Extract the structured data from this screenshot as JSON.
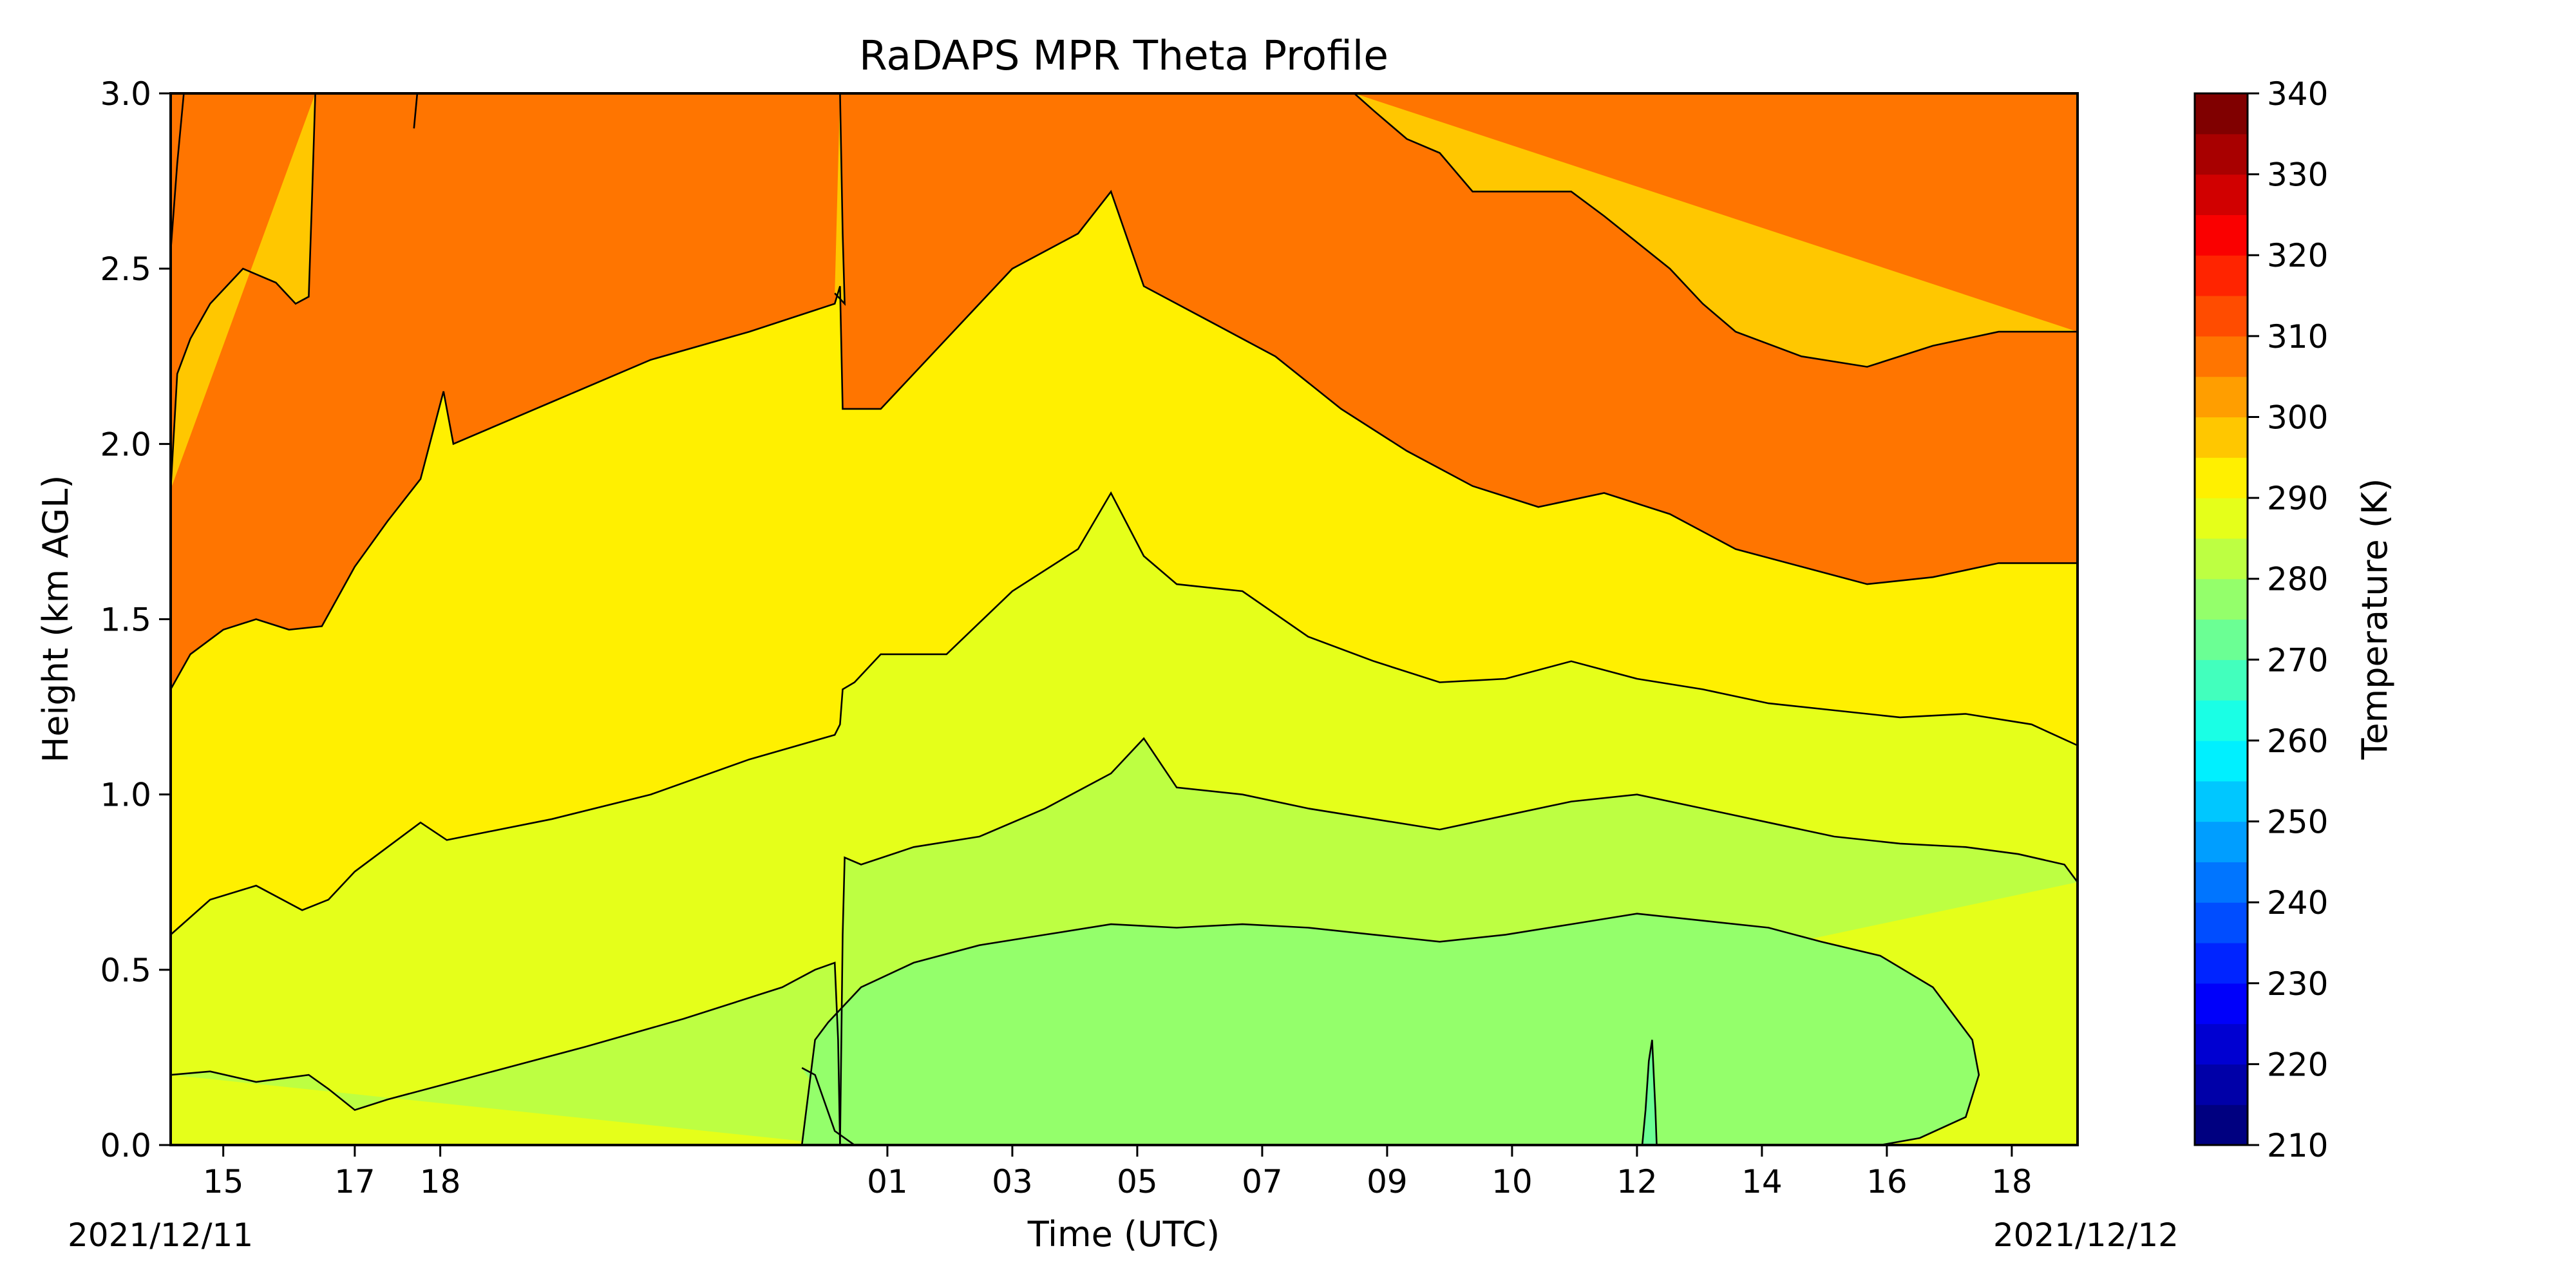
{
  "chart_data": {
    "type": "heatmap",
    "title": "RaDAPS MPR Theta Profile",
    "xlabel": "Time (UTC)",
    "ylabel": "Height (km AGL)",
    "xlim": [
      14.2,
      43.2
    ],
    "ylim": [
      0,
      3.0
    ],
    "x_ticks": [
      {
        "pos": 15,
        "label": "15"
      },
      {
        "pos": 17,
        "label": "17"
      },
      {
        "pos": 18.3,
        "label": "18"
      },
      {
        "pos": 25.1,
        "label": "01"
      },
      {
        "pos": 27,
        "label": "03"
      },
      {
        "pos": 28.9,
        "label": "05"
      },
      {
        "pos": 30.8,
        "label": "07"
      },
      {
        "pos": 32.7,
        "label": "09"
      },
      {
        "pos": 34.6,
        "label": "10"
      },
      {
        "pos": 36.5,
        "label": "12"
      },
      {
        "pos": 38.4,
        "label": "14"
      },
      {
        "pos": 40.3,
        "label": "16"
      },
      {
        "pos": 42.2,
        "label": "18"
      }
    ],
    "date_labels": {
      "left": "2021/12/11",
      "right": "2021/12/12"
    },
    "y_ticks": [
      {
        "pos": 0.0,
        "label": "0.0"
      },
      {
        "pos": 0.5,
        "label": "0.5"
      },
      {
        "pos": 1.0,
        "label": "1.0"
      },
      {
        "pos": 1.5,
        "label": "1.5"
      },
      {
        "pos": 2.0,
        "label": "2.0"
      },
      {
        "pos": 2.5,
        "label": "2.5"
      },
      {
        "pos": 3.0,
        "label": "3.0"
      }
    ],
    "colorbar": {
      "label": "Temperature (K)",
      "min": 210,
      "max": 340,
      "step": 5,
      "ticks": [
        "210",
        "220",
        "230",
        "240",
        "250",
        "260",
        "270",
        "280",
        "290",
        "300",
        "310",
        "320",
        "330",
        "340"
      ],
      "colormap": "jet"
    },
    "contour_levels": [
      275,
      280,
      285,
      290,
      295,
      300,
      305
    ],
    "contours": [
      {
        "level": 275,
        "points": [
          [
            36.58,
            0.0
          ],
          [
            36.63,
            0.1
          ],
          [
            36.68,
            0.24
          ],
          [
            36.73,
            0.3
          ],
          [
            36.78,
            0.1
          ],
          [
            36.8,
            0.0
          ]
        ]
      },
      {
        "level": 280,
        "points": [
          [
            23.8,
            0.0
          ],
          [
            23.9,
            0.15
          ],
          [
            24.0,
            0.3
          ],
          [
            24.2,
            0.35
          ],
          [
            24.7,
            0.45
          ],
          [
            25.5,
            0.52
          ],
          [
            26.5,
            0.57
          ],
          [
            27.5,
            0.6
          ],
          [
            28.5,
            0.63
          ],
          [
            29.5,
            0.62
          ],
          [
            30.5,
            0.63
          ],
          [
            31.5,
            0.62
          ],
          [
            32.5,
            0.6
          ],
          [
            33.5,
            0.58
          ],
          [
            34.5,
            0.6
          ],
          [
            35.5,
            0.63
          ],
          [
            36.5,
            0.66
          ],
          [
            37.5,
            0.64
          ],
          [
            38.5,
            0.62
          ],
          [
            39.3,
            0.58
          ],
          [
            40.2,
            0.54
          ],
          [
            41.0,
            0.45
          ],
          [
            41.6,
            0.3
          ],
          [
            41.7,
            0.2
          ],
          [
            41.5,
            0.08
          ],
          [
            40.8,
            0.02
          ],
          [
            40.2,
            0.0
          ]
        ]
      },
      {
        "level": 280,
        "points": [
          [
            24.6,
            0.0
          ],
          [
            24.3,
            0.04
          ],
          [
            24.0,
            0.2
          ],
          [
            23.8,
            0.22
          ]
        ]
      },
      {
        "level": 285,
        "points": [
          [
            14.2,
            0.2
          ],
          [
            14.8,
            0.21
          ],
          [
            15.5,
            0.18
          ],
          [
            16.3,
            0.2
          ],
          [
            16.6,
            0.16
          ],
          [
            17.0,
            0.1
          ],
          [
            17.5,
            0.13
          ],
          [
            18.3,
            0.17
          ],
          [
            20.5,
            0.28
          ],
          [
            22.0,
            0.36
          ],
          [
            23.5,
            0.45
          ],
          [
            24.0,
            0.5
          ],
          [
            24.3,
            0.52
          ],
          [
            24.35,
            0.3
          ],
          [
            24.38,
            0.0
          ]
        ]
      },
      {
        "level": 285,
        "points": [
          [
            24.38,
            0.0
          ],
          [
            24.42,
            0.6
          ],
          [
            24.45,
            0.82
          ],
          [
            24.7,
            0.8
          ],
          [
            25.5,
            0.85
          ],
          [
            26.5,
            0.88
          ],
          [
            27.5,
            0.96
          ],
          [
            28.5,
            1.06
          ],
          [
            29.0,
            1.16
          ],
          [
            29.5,
            1.02
          ],
          [
            30.5,
            1.0
          ],
          [
            31.5,
            0.96
          ],
          [
            32.5,
            0.93
          ],
          [
            33.5,
            0.9
          ],
          [
            34.5,
            0.94
          ],
          [
            35.5,
            0.98
          ],
          [
            36.5,
            1.0
          ],
          [
            37.5,
            0.96
          ],
          [
            38.5,
            0.92
          ],
          [
            39.5,
            0.88
          ],
          [
            40.5,
            0.86
          ],
          [
            41.5,
            0.85
          ],
          [
            42.3,
            0.83
          ],
          [
            43.0,
            0.8
          ],
          [
            43.2,
            0.75
          ]
        ]
      },
      {
        "level": 290,
        "points": [
          [
            14.2,
            0.6
          ],
          [
            14.8,
            0.7
          ],
          [
            15.5,
            0.74
          ],
          [
            16.2,
            0.67
          ],
          [
            16.6,
            0.7
          ],
          [
            17.0,
            0.78
          ],
          [
            17.5,
            0.85
          ],
          [
            18.0,
            0.92
          ],
          [
            18.4,
            0.87
          ],
          [
            20.0,
            0.93
          ],
          [
            21.5,
            1.0
          ],
          [
            23.0,
            1.1
          ],
          [
            24.3,
            1.17
          ],
          [
            24.38,
            1.2
          ],
          [
            24.42,
            1.3
          ],
          [
            24.6,
            1.32
          ],
          [
            25.0,
            1.4
          ],
          [
            26.0,
            1.4
          ],
          [
            27.0,
            1.58
          ],
          [
            28.0,
            1.7
          ],
          [
            28.5,
            1.86
          ],
          [
            29.0,
            1.68
          ],
          [
            29.5,
            1.6
          ],
          [
            30.5,
            1.58
          ],
          [
            31.5,
            1.45
          ],
          [
            32.5,
            1.38
          ],
          [
            33.5,
            1.32
          ],
          [
            34.5,
            1.33
          ],
          [
            35.5,
            1.38
          ],
          [
            36.5,
            1.33
          ],
          [
            37.5,
            1.3
          ],
          [
            38.5,
            1.26
          ],
          [
            39.5,
            1.24
          ],
          [
            40.5,
            1.22
          ],
          [
            41.5,
            1.23
          ],
          [
            42.5,
            1.2
          ],
          [
            43.2,
            1.14
          ]
        ]
      },
      {
        "level": 295,
        "points": [
          [
            14.2,
            1.3
          ],
          [
            14.5,
            1.4
          ],
          [
            15.0,
            1.47
          ],
          [
            15.5,
            1.5
          ],
          [
            16.0,
            1.47
          ],
          [
            16.5,
            1.48
          ],
          [
            17.0,
            1.65
          ],
          [
            17.5,
            1.78
          ],
          [
            18.0,
            1.9
          ],
          [
            18.35,
            2.15
          ],
          [
            18.5,
            2.0
          ],
          [
            20.0,
            2.12
          ],
          [
            21.5,
            2.24
          ],
          [
            23.0,
            2.32
          ],
          [
            24.3,
            2.4
          ],
          [
            24.38,
            2.45
          ],
          [
            24.42,
            2.1
          ],
          [
            25.0,
            2.1
          ],
          [
            26.0,
            2.3
          ],
          [
            27.0,
            2.5
          ],
          [
            28.0,
            2.6
          ],
          [
            28.5,
            2.72
          ],
          [
            29.0,
            2.45
          ],
          [
            30.0,
            2.35
          ],
          [
            31.0,
            2.25
          ],
          [
            32.0,
            2.1
          ],
          [
            33.0,
            1.98
          ],
          [
            34.0,
            1.88
          ],
          [
            35.0,
            1.82
          ],
          [
            36.0,
            1.86
          ],
          [
            37.0,
            1.8
          ],
          [
            38.0,
            1.7
          ],
          [
            39.0,
            1.65
          ],
          [
            40.0,
            1.6
          ],
          [
            41.0,
            1.62
          ],
          [
            42.0,
            1.66
          ],
          [
            43.2,
            1.66
          ]
        ]
      },
      {
        "level": 300,
        "points": [
          [
            14.2,
            1.87
          ],
          [
            14.3,
            2.2
          ],
          [
            14.5,
            2.3
          ],
          [
            14.8,
            2.4
          ],
          [
            15.3,
            2.5
          ],
          [
            15.8,
            2.46
          ],
          [
            16.1,
            2.4
          ],
          [
            16.3,
            2.42
          ],
          [
            16.35,
            2.7
          ],
          [
            16.4,
            3.0
          ]
        ]
      },
      {
        "level": 300,
        "points": [
          [
            24.38,
            3.0
          ],
          [
            24.42,
            2.6
          ],
          [
            24.45,
            2.4
          ],
          [
            24.3,
            2.43
          ]
        ]
      },
      {
        "level": 300,
        "points": [
          [
            32.2,
            3.0
          ],
          [
            32.5,
            2.95
          ],
          [
            33.0,
            2.87
          ],
          [
            33.5,
            2.83
          ],
          [
            34.0,
            2.72
          ],
          [
            35.0,
            2.72
          ],
          [
            35.5,
            2.72
          ],
          [
            36.0,
            2.65
          ],
          [
            37.0,
            2.5
          ],
          [
            37.5,
            2.4
          ],
          [
            38.0,
            2.32
          ],
          [
            39.0,
            2.25
          ],
          [
            40.0,
            2.22
          ],
          [
            41.0,
            2.28
          ],
          [
            42.0,
            2.32
          ],
          [
            43.2,
            2.32
          ]
        ]
      },
      {
        "level": 305,
        "points": [
          [
            14.2,
            2.55
          ],
          [
            14.3,
            2.8
          ],
          [
            14.4,
            3.0
          ]
        ]
      },
      {
        "level": 305,
        "points": [
          [
            17.9,
            2.9
          ],
          [
            17.95,
            3.0
          ]
        ]
      }
    ]
  }
}
